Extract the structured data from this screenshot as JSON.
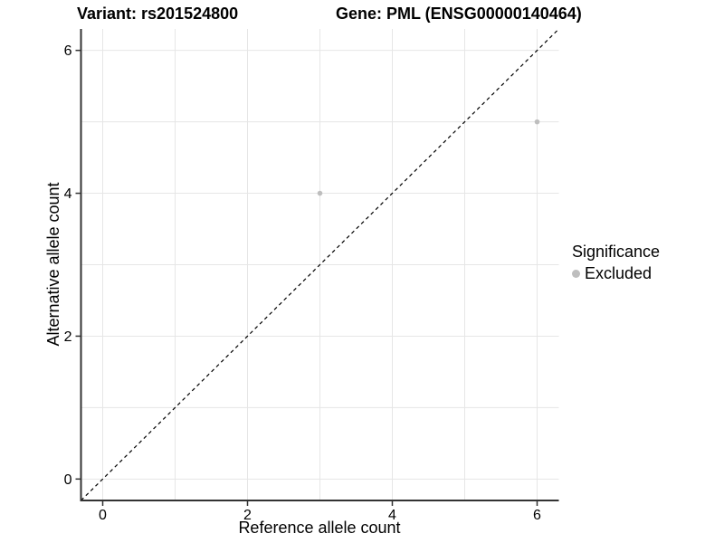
{
  "chart_data": {
    "type": "scatter",
    "title_left": "Variant: rs201524800",
    "title_right": "Gene: PML (ENSG00000140464)",
    "xlabel": "Reference allele count",
    "ylabel": "Alternative allele count",
    "xlim": [
      -0.3,
      6.3
    ],
    "ylim": [
      -0.3,
      6.3
    ],
    "x_ticks": [
      0,
      2,
      4,
      6
    ],
    "y_ticks": [
      0,
      2,
      4,
      6
    ],
    "grid_positions": [
      0,
      1,
      2,
      3,
      4,
      5,
      6
    ],
    "grid_on": true,
    "identity_line": {
      "equation": "y = x",
      "style": "dashed",
      "color": "#000000"
    },
    "series": [
      {
        "name": "Excluded",
        "color": "#bebebe",
        "points": [
          {
            "x": 3,
            "y": 4
          },
          {
            "x": 6,
            "y": 5
          }
        ]
      }
    ],
    "legend": {
      "title": "Significance",
      "position": "right",
      "entries": [
        {
          "label": "Excluded",
          "color": "#bebebe",
          "marker": "circle"
        }
      ]
    }
  },
  "colors": {
    "background": "#ffffff",
    "gridline": "#e6e6e6",
    "axis_line": "#333333",
    "tick": "#333333",
    "text": "#000000",
    "point": "#bebebe"
  }
}
